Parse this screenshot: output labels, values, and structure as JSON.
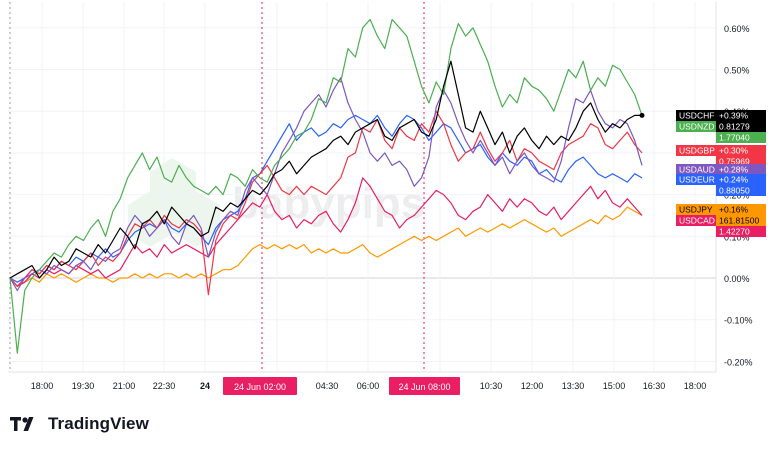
{
  "watermark": "babypips",
  "brand": {
    "name": "TradingView"
  },
  "crosshair_labels": [
    "24 Jun   02:00",
    "24 Jun   08:00"
  ],
  "colors": {
    "USDCHF": "#000000",
    "USDNZD": "#4caf50",
    "USDGBP": "#f23645",
    "USDAUD": "#7e57c2",
    "USDEUR": "#2962ff",
    "USDJPY": "#ff9800",
    "USDCAD": "#e91e63",
    "crosshair": "#e91e63",
    "grid": "#f0f3fa"
  },
  "chart_data": {
    "type": "line",
    "y_unit": "%",
    "ylim": [
      -0.23,
      0.66
    ],
    "y_ticks": [
      "0.60%",
      "0.50%",
      "0.40%",
      "0.30%",
      "0.20%",
      "0.10%",
      "0.00%",
      "-0.10%",
      "-0.20%"
    ],
    "x_ticks": [
      "18:00",
      "19:30",
      "21:00",
      "22:30",
      "24",
      "02:00",
      "04:30",
      "06:00",
      "08:00",
      "10:30",
      "12:00",
      "13:30",
      "15:00",
      "16:30",
      "18:00"
    ],
    "grid": true,
    "legend": "right",
    "series": [
      {
        "name": "USDNZD",
        "change": "+0.39%",
        "price": "1.77040",
        "values": [
          0.0,
          -0.18,
          -0.03,
          0.0,
          0.02,
          0.04,
          0.06,
          0.05,
          0.08,
          0.1,
          0.09,
          0.12,
          0.14,
          0.1,
          0.16,
          0.19,
          0.24,
          0.27,
          0.3,
          0.26,
          0.29,
          0.24,
          0.23,
          0.27,
          0.24,
          0.22,
          0.21,
          0.2,
          0.22,
          0.2,
          0.25,
          0.24,
          0.22,
          0.26,
          0.24,
          0.23,
          0.27,
          0.29,
          0.31,
          0.34,
          0.35,
          0.38,
          0.43,
          0.42,
          0.48,
          0.47,
          0.55,
          0.53,
          0.6,
          0.62,
          0.58,
          0.55,
          0.62,
          0.6,
          0.58,
          0.52,
          0.46,
          0.42,
          0.47,
          0.44,
          0.55,
          0.61,
          0.58,
          0.6,
          0.56,
          0.52,
          0.46,
          0.41,
          0.44,
          0.42,
          0.48,
          0.46,
          0.45,
          0.43,
          0.4,
          0.45,
          0.5,
          0.48,
          0.52,
          0.45,
          0.48,
          0.46,
          0.51,
          0.5,
          0.47,
          0.44,
          0.39
        ]
      },
      {
        "name": "USDCHF",
        "change": "+0.39%",
        "price": "0.81279",
        "values": [
          0.0,
          0.01,
          0.02,
          0.03,
          0.0,
          0.02,
          0.05,
          0.03,
          0.04,
          0.07,
          0.06,
          0.05,
          0.08,
          0.06,
          0.09,
          0.12,
          0.1,
          0.07,
          0.13,
          0.14,
          0.16,
          0.13,
          0.17,
          0.15,
          0.13,
          0.12,
          0.1,
          0.11,
          0.17,
          0.16,
          0.18,
          0.17,
          0.19,
          0.21,
          0.2,
          0.22,
          0.25,
          0.26,
          0.28,
          0.25,
          0.27,
          0.29,
          0.3,
          0.31,
          0.33,
          0.34,
          0.32,
          0.35,
          0.36,
          0.37,
          0.38,
          0.34,
          0.33,
          0.36,
          0.37,
          0.38,
          0.35,
          0.34,
          0.38,
          0.46,
          0.52,
          0.44,
          0.36,
          0.35,
          0.4,
          0.36,
          0.32,
          0.35,
          0.3,
          0.34,
          0.36,
          0.33,
          0.31,
          0.34,
          0.32,
          0.34,
          0.33,
          0.36,
          0.4,
          0.42,
          0.38,
          0.35,
          0.37,
          0.36,
          0.38,
          0.39,
          0.39
        ]
      },
      {
        "name": "USDGBP",
        "change": "+0.30%",
        "price": "0.75969",
        "values": [
          0.0,
          -0.02,
          0.0,
          0.02,
          0.01,
          0.03,
          0.02,
          0.04,
          0.03,
          0.02,
          0.04,
          0.06,
          0.03,
          0.05,
          0.04,
          0.06,
          0.1,
          0.13,
          0.12,
          0.14,
          0.12,
          0.15,
          0.13,
          0.12,
          0.14,
          0.13,
          0.11,
          -0.04,
          0.09,
          0.13,
          0.15,
          0.14,
          0.18,
          0.23,
          0.25,
          0.27,
          0.24,
          0.21,
          0.2,
          0.22,
          0.2,
          0.22,
          0.21,
          0.2,
          0.22,
          0.24,
          0.29,
          0.3,
          0.36,
          0.35,
          0.38,
          0.33,
          0.31,
          0.36,
          0.34,
          0.33,
          0.37,
          0.35,
          0.4,
          0.37,
          0.32,
          0.28,
          0.3,
          0.31,
          0.35,
          0.31,
          0.28,
          0.3,
          0.33,
          0.28,
          0.31,
          0.3,
          0.28,
          0.27,
          0.26,
          0.3,
          0.32,
          0.33,
          0.34,
          0.37,
          0.36,
          0.32,
          0.31,
          0.33,
          0.35,
          0.32,
          0.3
        ]
      },
      {
        "name": "USDAUD",
        "change": "+0.28%",
        "price": "",
        "values": [
          0.0,
          -0.03,
          0.0,
          0.01,
          0.02,
          0.01,
          0.03,
          0.02,
          0.01,
          0.03,
          0.04,
          0.02,
          0.05,
          0.04,
          0.06,
          0.07,
          0.12,
          0.15,
          0.13,
          0.1,
          0.12,
          0.14,
          0.1,
          0.08,
          0.13,
          0.15,
          0.12,
          0.05,
          0.11,
          0.14,
          0.16,
          0.15,
          0.21,
          0.24,
          0.22,
          0.2,
          0.25,
          0.3,
          0.33,
          0.36,
          0.4,
          0.42,
          0.44,
          0.41,
          0.45,
          0.48,
          0.42,
          0.38,
          0.35,
          0.3,
          0.28,
          0.3,
          0.27,
          0.28,
          0.26,
          0.22,
          0.24,
          0.29,
          0.41,
          0.45,
          0.42,
          0.37,
          0.33,
          0.3,
          0.33,
          0.3,
          0.27,
          0.29,
          0.25,
          0.28,
          0.3,
          0.27,
          0.25,
          0.24,
          0.23,
          0.28,
          0.36,
          0.43,
          0.42,
          0.45,
          0.4,
          0.37,
          0.36,
          0.38,
          0.37,
          0.33,
          0.27
        ]
      },
      {
        "name": "USDEUR",
        "change": "+0.24%",
        "price": "0.88050",
        "values": [
          0.0,
          -0.01,
          0.0,
          0.02,
          0.01,
          0.03,
          0.02,
          0.04,
          0.03,
          0.05,
          0.04,
          0.06,
          0.05,
          0.07,
          0.05,
          0.06,
          0.09,
          0.11,
          0.12,
          0.13,
          0.12,
          0.14,
          0.12,
          0.11,
          0.13,
          0.12,
          0.1,
          0.08,
          0.12,
          0.14,
          0.15,
          0.16,
          0.19,
          0.24,
          0.25,
          0.28,
          0.31,
          0.34,
          0.37,
          0.33,
          0.35,
          0.36,
          0.34,
          0.35,
          0.37,
          0.36,
          0.38,
          0.39,
          0.38,
          0.37,
          0.39,
          0.36,
          0.34,
          0.37,
          0.39,
          0.38,
          0.36,
          0.33,
          0.35,
          0.37,
          0.36,
          0.33,
          0.3,
          0.31,
          0.32,
          0.29,
          0.27,
          0.3,
          0.28,
          0.27,
          0.29,
          0.28,
          0.25,
          0.26,
          0.24,
          0.23,
          0.26,
          0.28,
          0.29,
          0.27,
          0.25,
          0.24,
          0.25,
          0.24,
          0.23,
          0.25,
          0.24
        ]
      },
      {
        "name": "USDJPY",
        "change": "+0.16%",
        "price": "161.81500",
        "values": [
          0.0,
          -0.02,
          -0.01,
          0.0,
          -0.01,
          0.01,
          0.0,
          0.01,
          0.0,
          -0.01,
          0.0,
          0.01,
          0.0,
          0.0,
          -0.01,
          0.0,
          0.0,
          0.01,
          0.0,
          0.01,
          0.0,
          0.01,
          0.01,
          0.0,
          0.01,
          0.0,
          0.01,
          0.0,
          0.01,
          0.02,
          0.02,
          0.03,
          0.05,
          0.07,
          0.08,
          0.07,
          0.08,
          0.07,
          0.08,
          0.07,
          0.08,
          0.06,
          0.07,
          0.06,
          0.07,
          0.06,
          0.06,
          0.07,
          0.08,
          0.06,
          0.05,
          0.06,
          0.07,
          0.08,
          0.09,
          0.1,
          0.09,
          0.1,
          0.09,
          0.1,
          0.11,
          0.12,
          0.1,
          0.11,
          0.12,
          0.11,
          0.12,
          0.13,
          0.12,
          0.13,
          0.14,
          0.13,
          0.12,
          0.11,
          0.12,
          0.1,
          0.11,
          0.12,
          0.13,
          0.14,
          0.13,
          0.15,
          0.14,
          0.15,
          0.17,
          0.16,
          0.15
        ]
      },
      {
        "name": "USDCAD",
        "change": "",
        "price": "1.42270",
        "values": [
          0.0,
          -0.02,
          -0.01,
          0.01,
          0.0,
          0.02,
          0.01,
          0.02,
          0.01,
          0.03,
          0.02,
          0.01,
          0.02,
          0.0,
          0.01,
          0.02,
          0.05,
          0.08,
          0.06,
          0.07,
          0.05,
          0.08,
          0.06,
          0.07,
          0.08,
          0.07,
          0.06,
          0.05,
          0.08,
          0.1,
          0.12,
          0.14,
          0.16,
          0.18,
          0.17,
          0.2,
          0.16,
          0.14,
          0.15,
          0.12,
          0.14,
          0.13,
          0.15,
          0.16,
          0.13,
          0.11,
          0.14,
          0.18,
          0.24,
          0.22,
          0.19,
          0.16,
          0.15,
          0.12,
          0.14,
          0.15,
          0.17,
          0.19,
          0.21,
          0.2,
          0.18,
          0.15,
          0.14,
          0.16,
          0.17,
          0.2,
          0.18,
          0.16,
          0.19,
          0.17,
          0.19,
          0.18,
          0.16,
          0.15,
          0.17,
          0.14,
          0.16,
          0.18,
          0.2,
          0.22,
          0.19,
          0.21,
          0.18,
          0.17,
          0.19,
          0.17,
          0.15
        ]
      }
    ]
  }
}
